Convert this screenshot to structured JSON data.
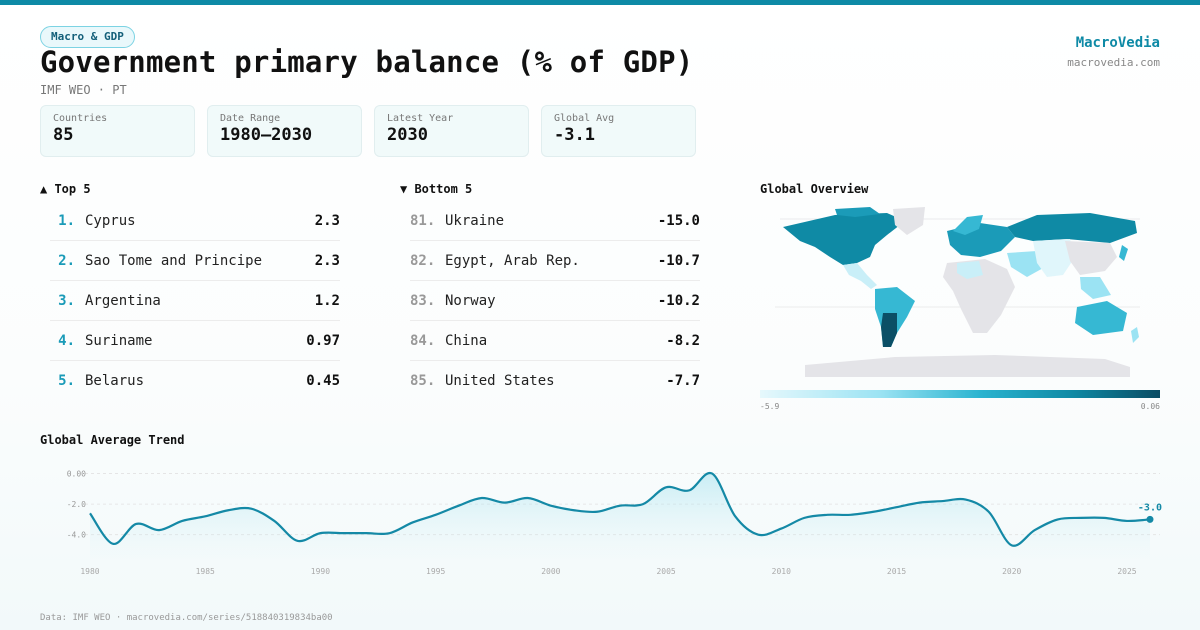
{
  "header": {
    "tag": "Macro & GDP",
    "title": "Government primary balance (% of GDP)",
    "subtitle": "IMF WEO · PT",
    "brand": "MacroVedia",
    "brand_url": "macrovedia.com"
  },
  "stats": [
    {
      "label": "Countries",
      "value": "85"
    },
    {
      "label": "Date Range",
      "value": "1980–2030"
    },
    {
      "label": "Latest Year",
      "value": "2030"
    },
    {
      "label": "Global Avg",
      "value": "-3.1"
    }
  ],
  "top5": {
    "heading": "▲ Top 5",
    "items": [
      {
        "rank": "1.",
        "name": "Cyprus",
        "value": "2.3"
      },
      {
        "rank": "2.",
        "name": "Sao Tome and Principe",
        "value": "2.3"
      },
      {
        "rank": "3.",
        "name": "Argentina",
        "value": "1.2"
      },
      {
        "rank": "4.",
        "name": "Suriname",
        "value": "0.97"
      },
      {
        "rank": "5.",
        "name": "Belarus",
        "value": "0.45"
      }
    ]
  },
  "bottom5": {
    "heading": "▼ Bottom 5",
    "items": [
      {
        "rank": "81.",
        "name": "Ukraine",
        "value": "-15.0"
      },
      {
        "rank": "82.",
        "name": "Egypt, Arab Rep.",
        "value": "-10.7"
      },
      {
        "rank": "83.",
        "name": "Norway",
        "value": "-10.2"
      },
      {
        "rank": "84.",
        "name": "China",
        "value": "-8.2"
      },
      {
        "rank": "85.",
        "name": "United States",
        "value": "-7.7"
      }
    ]
  },
  "map": {
    "title": "Global Overview",
    "legend_min": "-5.9",
    "legend_max": "0.06",
    "colors": {
      "none": "#e4e4e8",
      "low": "#e0f6fb",
      "mid": "#36b8d3",
      "high": "#0f8aa5",
      "max": "#0b4f66"
    }
  },
  "chart_data": {
    "type": "area",
    "title": "Global Average Trend",
    "x": [
      1980,
      1981,
      1982,
      1983,
      1984,
      1985,
      1986,
      1987,
      1988,
      1989,
      1990,
      1991,
      1992,
      1993,
      1994,
      1995,
      1996,
      1997,
      1998,
      1999,
      2000,
      2001,
      2002,
      2003,
      2004,
      2005,
      2006,
      2007,
      2008,
      2009,
      2010,
      2011,
      2012,
      2013,
      2014,
      2015,
      2016,
      2017,
      2018,
      2019,
      2020,
      2021,
      2022,
      2023,
      2024,
      2025,
      2026
    ],
    "values": [
      -2.6,
      -4.6,
      -3.3,
      -3.7,
      -3.1,
      -2.8,
      -2.4,
      -2.3,
      -3.1,
      -4.4,
      -3.9,
      -3.9,
      -3.9,
      -3.9,
      -3.2,
      -2.7,
      -2.1,
      -1.6,
      -1.9,
      -1.6,
      -2.1,
      -2.4,
      -2.5,
      -2.1,
      -2.0,
      -0.9,
      -1.1,
      0.0,
      -2.8,
      -4.0,
      -3.6,
      -2.9,
      -2.7,
      -2.7,
      -2.5,
      -2.2,
      -1.9,
      -1.8,
      -1.7,
      -2.5,
      -4.7,
      -3.7,
      -3.0,
      -2.9,
      -2.9,
      -3.1,
      -3.0
    ],
    "ylim": [
      -5.2,
      0.3
    ],
    "yticks": [
      0,
      -2,
      -4
    ],
    "ytick_labels": [
      "0.00",
      "-2.0",
      "-4.0"
    ],
    "xticks": [
      1980,
      1985,
      1990,
      1995,
      2000,
      2005,
      2010,
      2015,
      2020,
      2025
    ],
    "last_label": "-3.0",
    "color": "#1489a6"
  },
  "footer": "Data: IMF WEO · macrovedia.com/series/518840319834ba00"
}
